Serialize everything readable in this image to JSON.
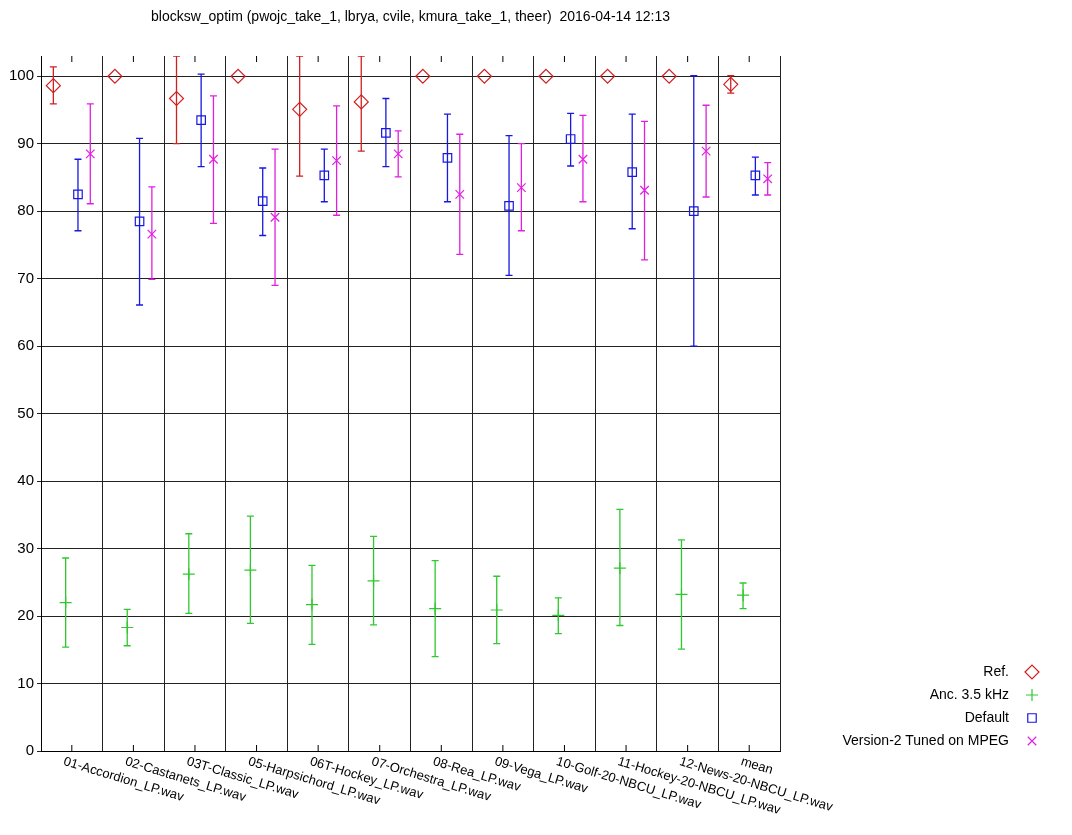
{
  "chart_data": {
    "type": "scatter",
    "title": "blocksw_optim (pwojc_take_1, lbrya, cvile, kmura_take_1, theer)  2016-04-14 12:13",
    "categories": [
      "01-Accordion_LP.wav",
      "02-Castanets_LP.wav",
      "03T-Classic_LP.wav",
      "05-Harpsichord_LP.wav",
      "06T-Hockey_LP.wav",
      "07-Orchestra_LP.wav",
      "08-Rea_LP.wav",
      "09-Vega_LP.wav",
      "10-Golf-20-NBCU_LP.wav",
      "11-Hockey-20-NBCU_LP.wav",
      "12-News-20-NBCU_LP.wav",
      "mean"
    ],
    "series": [
      {
        "name": "Ref.",
        "color": "#d02020",
        "marker": "diamond",
        "values": [
          98.6,
          100,
          96.7,
          100,
          95.1,
          96.2,
          100,
          100,
          100,
          100,
          100,
          98.8
        ],
        "errors": [
          [
            95.9,
            101.4
          ],
          null,
          [
            90,
            103
          ],
          null,
          [
            85.2,
            103
          ],
          [
            88.9,
            103
          ],
          null,
          null,
          null,
          null,
          null,
          [
            97.5,
            100.1
          ]
        ]
      },
      {
        "name": "Anc. 3.5 kHz",
        "color": "#30c830",
        "marker": "cross",
        "values": [
          22.0,
          18.3,
          26.2,
          26.8,
          21.7,
          25.2,
          21.1,
          20.9,
          20.1,
          27.1,
          23.2,
          23.1
        ],
        "errors": [
          [
            15.4,
            28.6
          ],
          [
            15.6,
            21.0
          ],
          [
            20.4,
            32.2
          ],
          [
            18.9,
            34.8
          ],
          [
            15.8,
            27.5
          ],
          [
            18.7,
            31.8
          ],
          [
            14.0,
            28.2
          ],
          [
            15.9,
            25.9
          ],
          [
            17.4,
            22.7
          ],
          [
            18.6,
            35.8
          ],
          [
            15.1,
            31.3
          ],
          [
            21.1,
            24.9
          ]
        ]
      },
      {
        "name": "Default",
        "color": "#1818e0",
        "marker": "square",
        "values": [
          82.5,
          78.5,
          93.5,
          81.5,
          85.3,
          91.6,
          87.9,
          80.8,
          90.7,
          85.8,
          80.0,
          85.3
        ],
        "errors": [
          [
            77.1,
            87.7
          ],
          [
            66.1,
            90.8
          ],
          [
            86.6,
            100.3
          ],
          [
            76.4,
            86.4
          ],
          [
            81.4,
            89.2
          ],
          [
            86.6,
            96.7
          ],
          [
            81.4,
            94.4
          ],
          [
            70.5,
            91.2
          ],
          [
            86.7,
            94.5
          ],
          [
            77.4,
            94.4
          ],
          [
            60,
            100.1
          ],
          [
            82.4,
            88.0
          ]
        ]
      },
      {
        "name": "Version-2 Tuned on MPEG",
        "color": "#e020e0",
        "marker": "cross_x",
        "values": [
          88.5,
          76.6,
          87.7,
          79.1,
          87.5,
          88.5,
          82.5,
          83.5,
          87.7,
          83.1,
          88.9,
          84.8
        ],
        "errors": [
          [
            81.1,
            95.9
          ],
          [
            69.9,
            83.6
          ],
          [
            78.2,
            97.1
          ],
          [
            69.0,
            89.2
          ],
          [
            79.4,
            95.6
          ],
          [
            85.1,
            91.9
          ],
          [
            73.6,
            91.4
          ],
          [
            77.1,
            90.0
          ],
          [
            81.4,
            94.2
          ],
          [
            72.8,
            93.3
          ],
          [
            82.1,
            95.7
          ],
          [
            82.4,
            87.2
          ]
        ]
      }
    ],
    "ylim": [
      0,
      103
    ],
    "yticks": [
      0,
      10,
      20,
      30,
      40,
      50,
      60,
      70,
      80,
      90,
      100
    ],
    "grid": true,
    "legend": "bottom right"
  }
}
